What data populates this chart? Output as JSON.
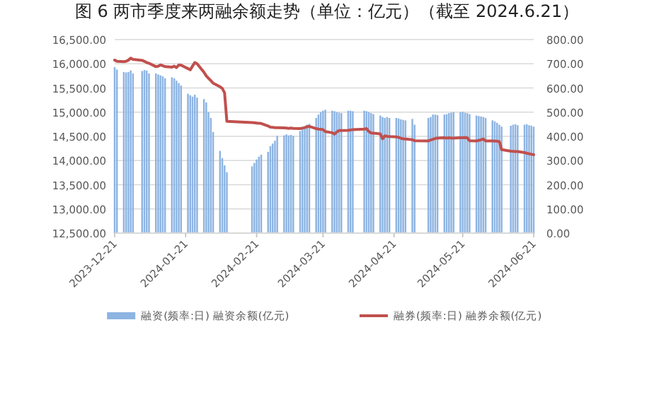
{
  "chart_data": {
    "type": "bar",
    "title": "图 6 两市季度来两融余额走势（单位：亿元）（截至 2024.6.21）",
    "x": [
      "2023-12-21",
      "2023-12-22",
      "2023-12-25",
      "2023-12-26",
      "2023-12-27",
      "2023-12-28",
      "2023-12-29",
      "2024-01-02",
      "2024-01-03",
      "2024-01-04",
      "2024-01-05",
      "2024-01-08",
      "2024-01-09",
      "2024-01-10",
      "2024-01-11",
      "2024-01-12",
      "2024-01-15",
      "2024-01-16",
      "2024-01-17",
      "2024-01-18",
      "2024-01-19",
      "2024-01-22",
      "2024-01-23",
      "2024-01-24",
      "2024-01-25",
      "2024-01-26",
      "2024-01-29",
      "2024-01-30",
      "2024-01-31",
      "2024-02-01",
      "2024-02-02",
      "2024-02-05",
      "2024-02-06",
      "2024-02-07",
      "2024-02-08",
      "2024-02-19",
      "2024-02-20",
      "2024-02-21",
      "2024-02-22",
      "2024-02-23",
      "2024-02-26",
      "2024-02-27",
      "2024-02-28",
      "2024-02-29",
      "2024-03-01",
      "2024-03-04",
      "2024-03-05",
      "2024-03-06",
      "2024-03-07",
      "2024-03-08",
      "2024-03-11",
      "2024-03-12",
      "2024-03-13",
      "2024-03-14",
      "2024-03-15",
      "2024-03-18",
      "2024-03-19",
      "2024-03-20",
      "2024-03-21",
      "2024-03-22",
      "2024-03-25",
      "2024-03-26",
      "2024-03-27",
      "2024-03-28",
      "2024-03-29",
      "2024-04-01",
      "2024-04-02",
      "2024-04-03",
      "2024-04-08",
      "2024-04-09",
      "2024-04-10",
      "2024-04-11",
      "2024-04-12",
      "2024-04-15",
      "2024-04-16",
      "2024-04-17",
      "2024-04-18",
      "2024-04-19",
      "2024-04-22",
      "2024-04-23",
      "2024-04-24",
      "2024-04-25",
      "2024-04-26",
      "2024-04-29",
      "2024-04-30",
      "2024-05-06",
      "2024-05-07",
      "2024-05-08",
      "2024-05-09",
      "2024-05-10",
      "2024-05-13",
      "2024-05-14",
      "2024-05-15",
      "2024-05-16",
      "2024-05-17",
      "2024-05-20",
      "2024-05-21",
      "2024-05-22",
      "2024-05-23",
      "2024-05-24",
      "2024-05-27",
      "2024-05-28",
      "2024-05-29",
      "2024-05-30",
      "2024-05-31",
      "2024-06-03",
      "2024-06-04",
      "2024-06-05",
      "2024-06-06",
      "2024-06-07",
      "2024-06-11",
      "2024-06-12",
      "2024-06-13",
      "2024-06-14",
      "2024-06-17",
      "2024-06-18",
      "2024-06-19",
      "2024-06-20",
      "2024-06-21"
    ],
    "series": [
      {
        "name": "融资(频率:日) 融资余额(亿元)",
        "color": "#8db4e2",
        "values": [
          15930,
          15880,
          15830,
          15820,
          15830,
          15860,
          15800,
          15850,
          15870,
          15860,
          15800,
          15800,
          15780,
          15760,
          15740,
          15700,
          15720,
          15700,
          15650,
          15600,
          15550,
          15380,
          15350,
          15320,
          15360,
          15300,
          15270,
          15200,
          15000,
          14880,
          14590,
          14200,
          14050,
          13900,
          13760,
          13880,
          13950,
          14020,
          14080,
          14120,
          14180,
          14300,
          14350,
          14410,
          14510,
          14520,
          14540,
          14520,
          14530,
          14510,
          14610,
          14650,
          14700,
          14740,
          14760,
          14880,
          14950,
          15000,
          15030,
          15050,
          15030,
          15020,
          15000,
          14990,
          14980,
          15030,
          15030,
          15020,
          15030,
          15020,
          15000,
          14980,
          14960,
          14930,
          14900,
          14880,
          14900,
          14880,
          14880,
          14870,
          14850,
          14840,
          14830,
          14860,
          14740,
          14880,
          14900,
          14950,
          14950,
          14940,
          14950,
          14960,
          14980,
          14990,
          15000,
          15000,
          15010,
          14990,
          14980,
          14960,
          14930,
          14920,
          14910,
          14900,
          14880,
          14830,
          14810,
          14780,
          14740,
          14700,
          14720,
          14740,
          14750,
          14730,
          14740,
          14750,
          14730,
          14720,
          14700
        ]
      },
      {
        "name": "融券(频率:日) 融券余额(亿元)",
        "type": "line",
        "axis": "y2",
        "color": "#c0504d",
        "values": [
          715,
          710,
          709,
          710,
          715,
          723,
          718,
          714,
          710,
          705,
          702,
          688,
          690,
          695,
          692,
          688,
          686,
          690,
          684,
          695,
          694,
          680,
          675,
          690,
          705,
          700,
          665,
          650,
          640,
          630,
          620,
          605,
          598,
          580,
          462,
          457,
          456,
          455,
          454,
          453,
          443,
          438,
          437,
          436,
          436,
          435,
          434,
          433,
          434,
          433,
          432,
          434,
          436,
          440,
          441,
          432,
          430,
          429,
          428,
          420,
          415,
          409,
          418,
          424,
          424,
          425,
          426,
          428,
          430,
          432,
          420,
          414,
          413,
          410,
          390,
          402,
          400,
          399,
          398,
          396,
          392,
          390,
          389,
          386,
          382,
          381,
          385,
          388,
          391,
          393,
          394,
          393,
          394,
          393,
          393,
          394,
          394,
          395,
          394,
          382,
          381,
          383,
          386,
          389,
          381,
          381,
          380,
          380,
          378,
          345,
          339,
          338,
          337,
          337,
          333,
          330,
          328,
          326,
          324
        ]
      }
    ],
    "xlim": [
      "2023-12-21",
      "2024-06-21"
    ],
    "xticks": [
      "2023-12-21",
      "2024-01-21",
      "2024-02-21",
      "2024-03-21",
      "2024-04-21",
      "2024-05-21",
      "2024-06-21"
    ],
    "ylim": [
      12500,
      16500
    ],
    "yticks": [
      {
        "value": 12500,
        "label": "12,500.00"
      },
      {
        "value": 13000,
        "label": "13,000.00"
      },
      {
        "value": 13500,
        "label": "13,500.00"
      },
      {
        "value": 14000,
        "label": "14,000.00"
      },
      {
        "value": 14500,
        "label": "14,500.00"
      },
      {
        "value": 15000,
        "label": "15,000.00"
      },
      {
        "value": 15500,
        "label": "15,500.00"
      },
      {
        "value": 16000,
        "label": "16,000.00"
      },
      {
        "value": 16500,
        "label": "16,500.00"
      }
    ],
    "y2lim": [
      0,
      800
    ],
    "y2ticks": [
      {
        "value": 0,
        "label": "0.00"
      },
      {
        "value": 100,
        "label": "100.00"
      },
      {
        "value": 200,
        "label": "200.00"
      },
      {
        "value": 300,
        "label": "300.00"
      },
      {
        "value": 400,
        "label": "400.00"
      },
      {
        "value": 500,
        "label": "500.00"
      },
      {
        "value": 600,
        "label": "600.00"
      },
      {
        "value": 700,
        "label": "700.00"
      },
      {
        "value": 800,
        "label": "800.00"
      }
    ],
    "grid": "y",
    "legend": "bottom"
  }
}
